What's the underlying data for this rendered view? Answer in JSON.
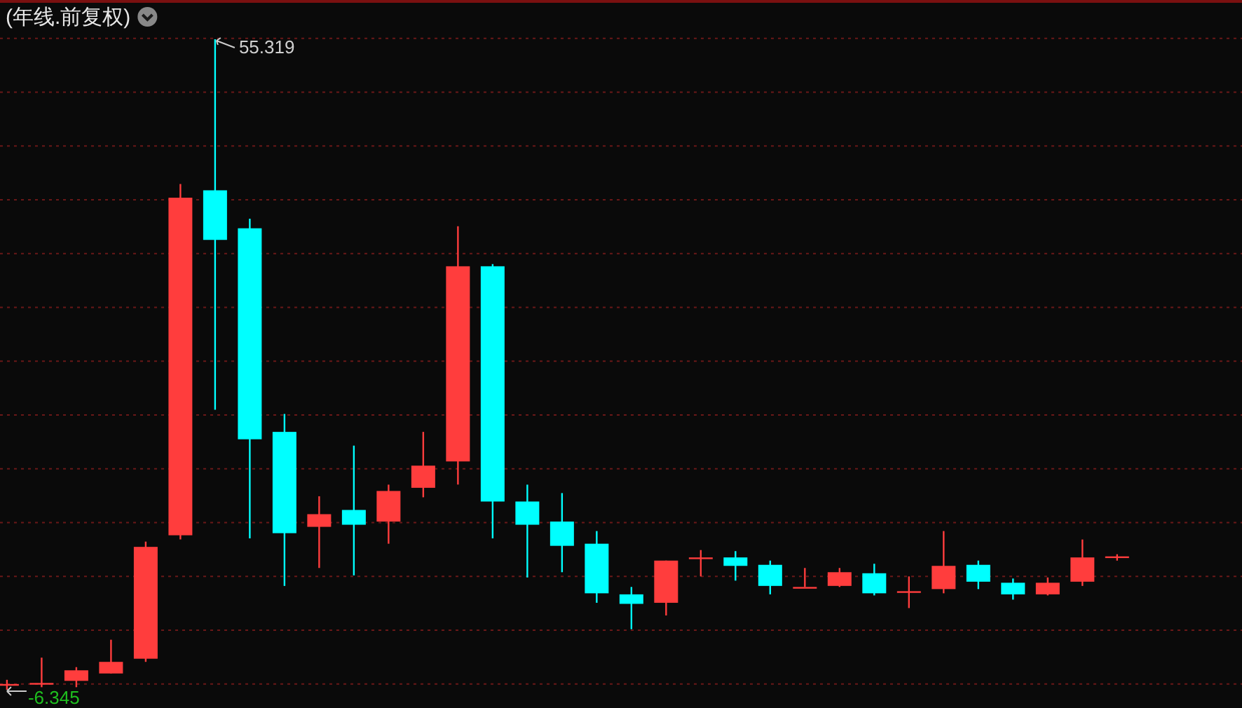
{
  "chart_data": {
    "type": "candlestick",
    "title": "(年线.前复权)",
    "categories": [
      null,
      null,
      null,
      null,
      null,
      null,
      null,
      null,
      null,
      null,
      null,
      null,
      null,
      null,
      null,
      null,
      null,
      null,
      null,
      null,
      null,
      null,
      null,
      null,
      null,
      null,
      null,
      null,
      null,
      null,
      null,
      null,
      null
    ],
    "ohlc": [
      [
        -5.8,
        -5.4,
        -6.345,
        -5.8
      ],
      [
        -5.7,
        -3.3,
        -6.1,
        -5.7
      ],
      [
        -5.5,
        -4.2,
        -6.1,
        -4.5
      ],
      [
        -4.8,
        -1.6,
        -4.8,
        -3.7
      ],
      [
        -3.4,
        7.7,
        -3.7,
        7.2
      ],
      [
        8.3,
        41.6,
        7.9,
        40.3
      ],
      [
        41.0,
        55.319,
        20.2,
        36.3
      ],
      [
        37.4,
        38.3,
        8.0,
        17.4
      ],
      [
        18.1,
        19.8,
        3.5,
        8.5
      ],
      [
        9.1,
        12.0,
        5.2,
        10.3
      ],
      [
        10.7,
        16.8,
        4.5,
        9.3
      ],
      [
        9.6,
        13.1,
        7.5,
        12.5
      ],
      [
        12.8,
        18.1,
        11.9,
        14.9
      ],
      [
        15.3,
        37.6,
        13.1,
        33.8
      ],
      [
        33.8,
        34.0,
        8.0,
        11.5
      ],
      [
        11.5,
        13.1,
        4.3,
        9.3
      ],
      [
        9.6,
        12.3,
        4.8,
        7.3
      ],
      [
        7.5,
        8.7,
        1.9,
        2.8
      ],
      [
        2.7,
        3.4,
        -0.6,
        1.8
      ],
      [
        1.9,
        5.9,
        0.7,
        5.9
      ],
      [
        6.2,
        6.9,
        4.4,
        6.2
      ],
      [
        6.2,
        6.8,
        4.0,
        5.4
      ],
      [
        5.5,
        5.9,
        2.7,
        3.5
      ],
      [
        3.4,
        5.2,
        3.4,
        3.4
      ],
      [
        3.5,
        5.2,
        3.4,
        4.8
      ],
      [
        4.7,
        5.6,
        2.6,
        2.8
      ],
      [
        3.0,
        4.4,
        1.4,
        3.0
      ],
      [
        3.2,
        8.7,
        2.8,
        5.4
      ],
      [
        5.5,
        5.9,
        3.2,
        3.9
      ],
      [
        3.8,
        4.2,
        2.2,
        2.7
      ],
      [
        2.7,
        4.3,
        2.6,
        3.8
      ],
      [
        3.9,
        7.9,
        3.5,
        6.2
      ],
      [
        6.3,
        6.5,
        5.9,
        6.3
      ]
    ],
    "colors": [
      "#ff3d3d",
      "#ff3d3d",
      "#ff3d3d",
      "#ff3d3d",
      "#ff3d3d",
      "#ff3d3d",
      "#00ffff",
      "#00ffff",
      "#00ffff",
      "#ff3d3d",
      "#00ffff",
      "#ff3d3d",
      "#ff3d3d",
      "#ff3d3d",
      "#00ffff",
      "#00ffff",
      "#00ffff",
      "#00ffff",
      "#00ffff",
      "#ff3d3d",
      "#ff3d3d",
      "#00ffff",
      "#00ffff",
      "#ff3d3d",
      "#ff3d3d",
      "#00ffff",
      "#ff3d3d",
      "#ff3d3d",
      "#00ffff",
      "#00ffff",
      "#ff3d3d",
      "#ff3d3d",
      "#ff3d3d"
    ],
    "yticks": [
      {
        "value": 55.4,
        "label": null
      },
      {
        "value": 50.3,
        "label": null
      },
      {
        "value": 45.2,
        "label": null
      },
      {
        "value": 40.1,
        "label": null
      },
      {
        "value": 35.0,
        "label": null
      },
      {
        "value": 29.9,
        "label": null
      },
      {
        "value": 24.8,
        "label": null
      },
      {
        "value": 19.7,
        "label": null
      },
      {
        "value": 14.6,
        "label": null
      },
      {
        "value": 9.5,
        "label": null
      },
      {
        "value": 4.4,
        "label": null
      },
      {
        "value": -0.7,
        "label": null
      },
      {
        "value": -5.8,
        "label": null
      }
    ],
    "grid": "y",
    "annotations": [
      "55.319",
      "-6.345"
    ]
  }
}
